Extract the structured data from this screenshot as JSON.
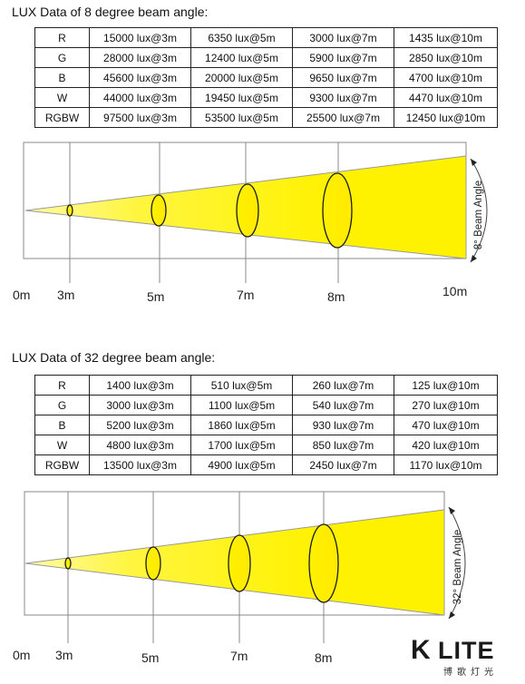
{
  "section1": {
    "heading": "LUX Data of 8 degree beam angle:",
    "rows": [
      [
        "R",
        "15000 lux@3m",
        "6350 lux@5m",
        "3000 lux@7m",
        "1435 lux@10m"
      ],
      [
        "G",
        "28000 lux@3m",
        "12400 lux@5m",
        "5900 lux@7m",
        "2850 lux@10m"
      ],
      [
        "B",
        "45600 lux@3m",
        "20000 lux@5m",
        "9650 lux@7m",
        "4700 lux@10m"
      ],
      [
        "W",
        "44000 lux@3m",
        "19450 lux@5m",
        "9300 lux@7m",
        "4470 lux@10m"
      ],
      [
        "RGBW",
        "97500 lux@3m",
        "53500 lux@5m",
        "25500 lux@7m",
        "12450 lux@10m"
      ]
    ],
    "beam_label": "8° Beam Angle",
    "distance_labels": [
      "0m",
      "3m",
      "5m",
      "7m",
      "8m",
      "10m"
    ]
  },
  "section2": {
    "heading": "LUX Data of 32 degree beam angle:",
    "rows": [
      [
        "R",
        "1400 lux@3m",
        "510 lux@5m",
        "260 lux@7m",
        "125 lux@10m"
      ],
      [
        "G",
        "3000 lux@3m",
        "1100 lux@5m",
        "540 lux@7m",
        "270 lux@10m"
      ],
      [
        "B",
        "5200 lux@3m",
        "1860 lux@5m",
        "930 lux@7m",
        "470 lux@10m"
      ],
      [
        "W",
        "4800 lux@3m",
        "1700 lux@5m",
        "850 lux@7m",
        "420 lux@10m"
      ],
      [
        "RGBW",
        "13500 lux@3m",
        "4900 lux@5m",
        "2450 lux@7m",
        "1170 lux@10m"
      ]
    ],
    "beam_label": "32° Beam Angle",
    "distance_labels": [
      "0m",
      "3m",
      "5m",
      "7m",
      "8m"
    ]
  },
  "logo": {
    "mark": "K",
    "text": "LITE",
    "subtitle": "博歌灯光"
  },
  "colors": {
    "beam_yellow": "#fff200",
    "beam_fade": "#fffbe0",
    "outline": "#1a1a1a",
    "grid": "#888888"
  }
}
